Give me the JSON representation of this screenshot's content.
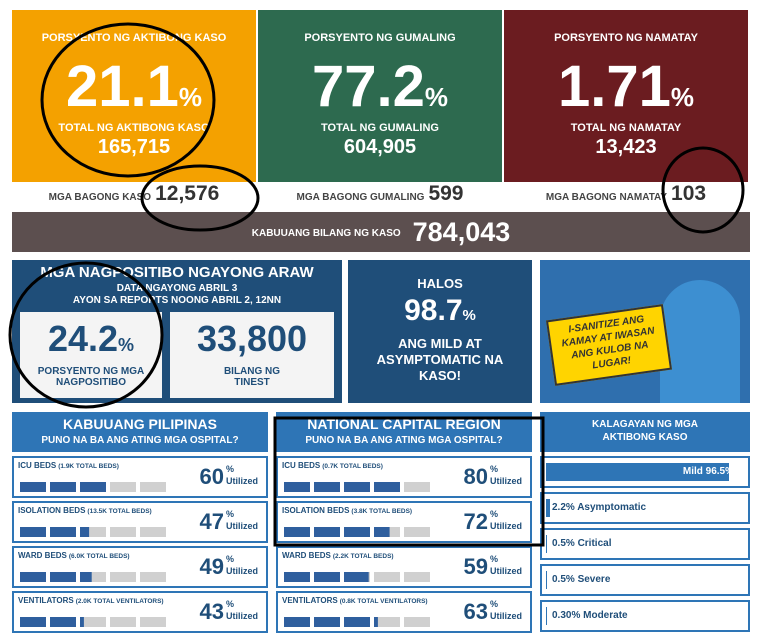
{
  "top_cards": [
    {
      "label": "PORSYENTO NG AKTIBONG KASO",
      "percent": 21.1,
      "unit": "%",
      "total_label": "TOTAL NG AKTIBONG KASO",
      "total": "165,715",
      "new_label": "MGA BAGONG KASO",
      "new": "12,576",
      "color": "#f4a100"
    },
    {
      "label": "PORSYENTO NG GUMALING",
      "percent": 77.2,
      "unit": "%",
      "total_label": "TOTAL NG GUMALING",
      "total": "604,905",
      "new_label": "MGA BAGONG GUMALING",
      "new": "599",
      "color": "#2d6a4f"
    },
    {
      "label": "PORSYENTO NG NAMATAY",
      "percent": 1.71,
      "unit": "%",
      "total_label": "TOTAL NG NAMATAY",
      "total": "13,423",
      "new_label": "MGA BAGONG NAMATAY",
      "new": "103",
      "color": "#6b1c20"
    }
  ],
  "total_cases": {
    "label": "KABUUANG BILANG NG KASO",
    "value": "784,043"
  },
  "positivity": {
    "title": "MGA NAGPOSITIBO NGAYONG ARAW",
    "date": "DATA NGAYONG ABRIL 3",
    "source": "AYON SA REPORTS NOONG ABRIL 2, 12NN",
    "rate": 24.2,
    "unit": "%",
    "rate_label": "PORSYENTO NG MGA NAGPOSITIBO",
    "tested": "33,800",
    "tested_label": "BILANG NG TINEST"
  },
  "mild": {
    "pre": "HALOS",
    "value": 98.7,
    "unit": "%",
    "text": "ANG MILD AT ASYMPTOMATIC NA KASO!"
  },
  "poster": {
    "text": "I-SANITIZE ANG KAMAY AT IWASAN ANG KULOB NA LUGAR!"
  },
  "unit": "%",
  "utilized": "Utilized",
  "hospitals": [
    {
      "title": "KABUUANG PILIPINAS",
      "subtitle": "PUNO NA BA ANG ATING MGA OSPITAL?",
      "items": [
        {
          "name": "ICU BEDS",
          "detail": "(1.9K TOTAL BEDS)",
          "value": 60
        },
        {
          "name": "ISOLATION BEDS",
          "detail": "(13.5K TOTAL BEDS)",
          "value": 47
        },
        {
          "name": "WARD BEDS",
          "detail": "(6.0K TOTAL BEDS)",
          "value": 49
        },
        {
          "name": "VENTILATORS",
          "detail": "(2.0K TOTAL VENTILATORS)",
          "value": 43
        }
      ]
    },
    {
      "title": "NATIONAL CAPITAL REGION",
      "subtitle": "PUNO NA BA ANG ATING MGA OSPITAL?",
      "items": [
        {
          "name": "ICU BEDS",
          "detail": "(0.7K TOTAL BEDS)",
          "value": 80
        },
        {
          "name": "ISOLATION BEDS",
          "detail": "(3.8K TOTAL BEDS)",
          "value": 72
        },
        {
          "name": "WARD BEDS",
          "detail": "(2.2K TOTAL BEDS)",
          "value": 59
        },
        {
          "name": "VENTILATORS",
          "detail": "(0.8K TOTAL VENTILATORS)",
          "value": 63
        }
      ]
    }
  ],
  "case_status": {
    "title": "KALAGAYAN NG MGA AKTIBONG KASO",
    "items": [
      {
        "text": "Mild 96.5%",
        "value": 96.5
      },
      {
        "text": "2.2% Asymptomatic",
        "value": 2.2
      },
      {
        "text": "0.5% Critical",
        "value": 0.5
      },
      {
        "text": "0.5% Severe",
        "value": 0.5
      },
      {
        "text": "0.30% Moderate",
        "value": 0.3
      }
    ]
  }
}
